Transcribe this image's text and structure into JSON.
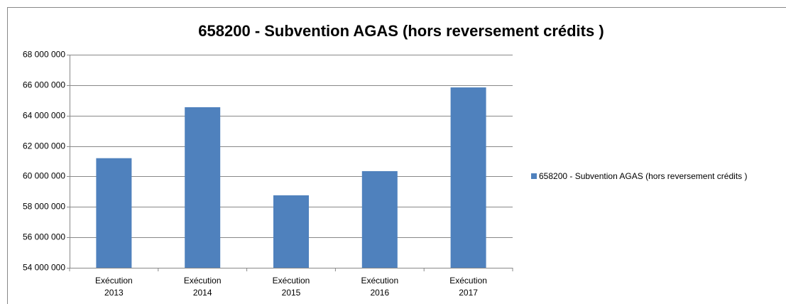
{
  "chart_data": {
    "type": "bar",
    "title": "658200 - Subvention AGAS (hors reversement crédits )",
    "categories": [
      "Exécution 2013",
      "Exécution 2014",
      "Exécution 2015",
      "Exécution 2016",
      "Exécution 2017"
    ],
    "series": [
      {
        "name": "658200 - Subvention AGAS (hors reversement crédits )",
        "color": "#4f81bd",
        "values": [
          61200000,
          64550000,
          58760000,
          60350000,
          65850000
        ]
      }
    ],
    "ylim": [
      54000000,
      68000000
    ],
    "yticks": [
      {
        "value": 54000000,
        "label": "54 000 000"
      },
      {
        "value": 56000000,
        "label": "56 000 000"
      },
      {
        "value": 58000000,
        "label": "58 000 000"
      },
      {
        "value": 60000000,
        "label": "60 000 000"
      },
      {
        "value": 62000000,
        "label": "62 000 000"
      },
      {
        "value": 64000000,
        "label": "64 000 000"
      },
      {
        "value": 66000000,
        "label": "66 000 000"
      },
      {
        "value": 68000000,
        "label": "68 000 000"
      }
    ],
    "grid": true,
    "legend": "right"
  }
}
